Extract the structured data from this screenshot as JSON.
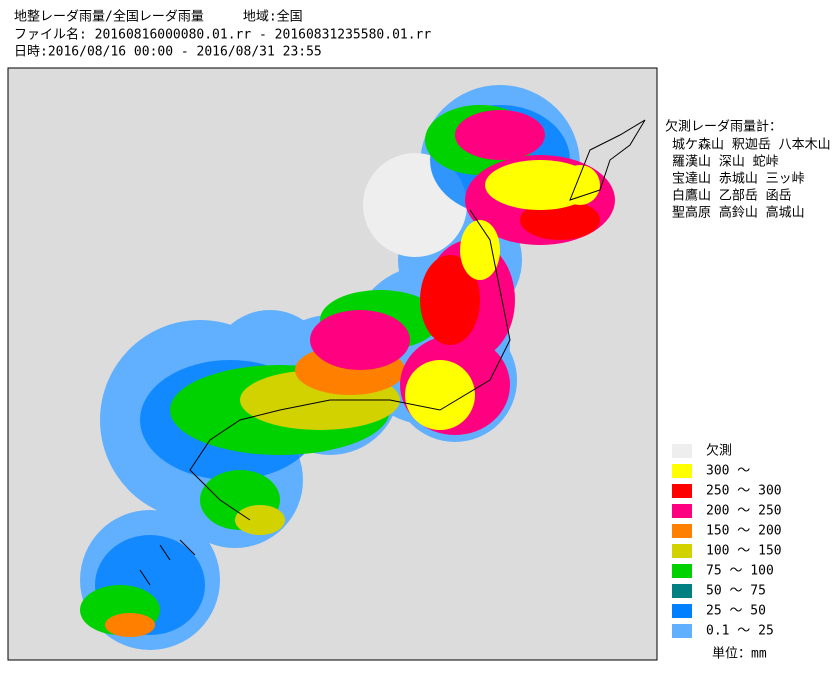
{
  "header": {
    "lines": [
      "地整レーダ雨量/全国レーダ雨量　　　地域:全国",
      "ファイル名: 20160816000080.01.rr - 20160831235580.01.rr",
      "日時:2016/08/16 00:00 - 2016/08/31 23:55"
    ]
  },
  "missing_radars": {
    "title": "欠測レーダ雨量計：",
    "rows": [
      "城ケ森山 釈迦岳 八本木山",
      "羅漢山 深山 蛇峠",
      "宝達山 赤城山 三ッ峠",
      "白鷹山 乙部岳 函岳",
      "聖高原 高鈴山 高城山"
    ]
  },
  "legend": {
    "items": [
      {
        "label": "欠測",
        "color": "#eeeeee"
      },
      {
        "label": "300 ～",
        "color": "#ffff00"
      },
      {
        "label": "250 ～ 300",
        "color": "#ff0000"
      },
      {
        "label": "200 ～ 250",
        "color": "#ff0080"
      },
      {
        "label": "150 ～ 200",
        "color": "#ff8000"
      },
      {
        "label": "100 ～ 150",
        "color": "#d2d200"
      },
      {
        "label": "75 ～ 100",
        "color": "#00d200"
      },
      {
        "label": "50 ～ 75",
        "color": "#008080"
      },
      {
        "label": "25 ～ 50",
        "color": "#0080ff"
      },
      {
        "label": "0.1 ～ 25",
        "color": "#60b0ff"
      }
    ],
    "unit": "単位：mm"
  }
}
